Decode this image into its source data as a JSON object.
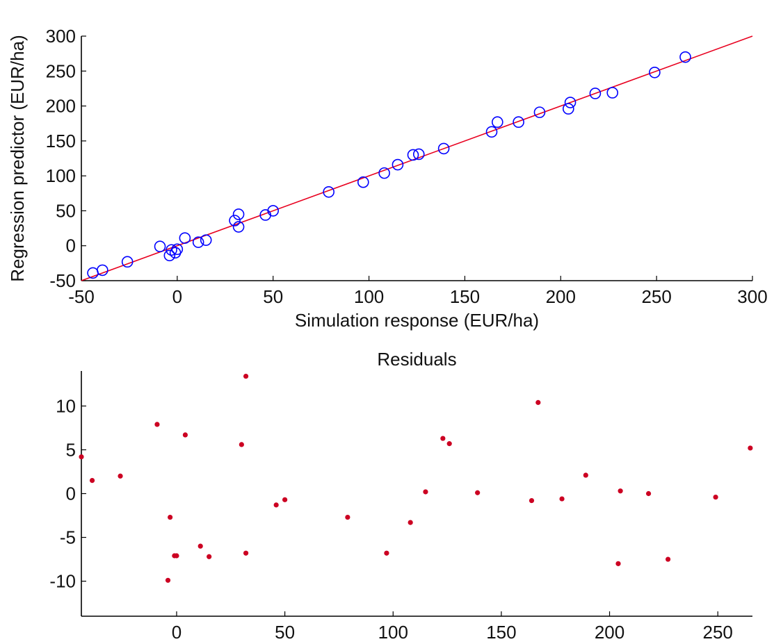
{
  "chart_data": [
    {
      "type": "scatter",
      "title": "",
      "xlabel": "Simulation response (EUR/ha)",
      "ylabel": "Regression predictor (EUR/ha)",
      "xlim": [
        -50,
        300
      ],
      "ylim": [
        -50,
        300
      ],
      "xticks": [
        -50,
        0,
        50,
        100,
        150,
        200,
        250,
        300
      ],
      "yticks": [
        -50,
        0,
        50,
        100,
        150,
        200,
        250,
        300
      ],
      "grid": false,
      "marker": "circle",
      "marker_color": "#0000ff",
      "fit_line": {
        "from": [
          -50,
          -50
        ],
        "to": [
          300,
          300
        ],
        "color": "#e8001f"
      },
      "points": [
        [
          -44,
          -39
        ],
        [
          -39,
          -35
        ],
        [
          -26,
          -23
        ],
        [
          -9,
          -1
        ],
        [
          -4,
          -14
        ],
        [
          -3,
          -6
        ],
        [
          0,
          -5
        ],
        [
          -1,
          -10
        ],
        [
          4,
          11
        ],
        [
          11,
          5
        ],
        [
          15,
          8
        ],
        [
          30,
          36
        ],
        [
          32,
          27
        ],
        [
          32,
          45
        ],
        [
          46,
          44
        ],
        [
          50,
          50
        ],
        [
          79,
          77
        ],
        [
          97,
          91
        ],
        [
          108,
          104
        ],
        [
          115,
          116
        ],
        [
          123,
          130
        ],
        [
          126,
          131
        ],
        [
          139,
          139
        ],
        [
          164,
          163
        ],
        [
          167,
          177
        ],
        [
          178,
          177
        ],
        [
          189,
          191
        ],
        [
          204,
          196
        ],
        [
          205,
          205
        ],
        [
          218,
          218
        ],
        [
          227,
          219
        ],
        [
          249,
          248
        ],
        [
          265,
          270
        ]
      ]
    },
    {
      "type": "scatter",
      "title": "Residuals",
      "xlabel": "",
      "ylabel": "",
      "xlim": [
        -44,
        266
      ],
      "ylim": [
        -14,
        14
      ],
      "xticks": [
        0,
        50,
        100,
        150,
        200,
        250
      ],
      "yticks": [
        -10,
        -5,
        0,
        5,
        10
      ],
      "grid": false,
      "marker": "dot",
      "marker_color": "#cc0022",
      "points": [
        [
          -44,
          4.2
        ],
        [
          -39,
          1.5
        ],
        [
          -26,
          2.0
        ],
        [
          -9,
          7.9
        ],
        [
          -4,
          -9.9
        ],
        [
          -3,
          -2.7
        ],
        [
          -1,
          -7.1
        ],
        [
          0,
          -7.1
        ],
        [
          4,
          6.7
        ],
        [
          11,
          -6.0
        ],
        [
          15,
          -7.2
        ],
        [
          30,
          5.6
        ],
        [
          32,
          13.4
        ],
        [
          32,
          -6.8
        ],
        [
          46,
          -1.3
        ],
        [
          50,
          -0.7
        ],
        [
          79,
          -2.7
        ],
        [
          97,
          -6.8
        ],
        [
          108,
          -3.3
        ],
        [
          115,
          0.2
        ],
        [
          123,
          6.3
        ],
        [
          126,
          5.7
        ],
        [
          139,
          0.1
        ],
        [
          164,
          -0.8
        ],
        [
          167,
          10.4
        ],
        [
          178,
          -0.6
        ],
        [
          189,
          2.1
        ],
        [
          204,
          -8.0
        ],
        [
          205,
          0.3
        ],
        [
          218,
          0.0
        ],
        [
          227,
          -7.5
        ],
        [
          249,
          -0.4
        ],
        [
          265,
          5.2
        ]
      ]
    }
  ]
}
